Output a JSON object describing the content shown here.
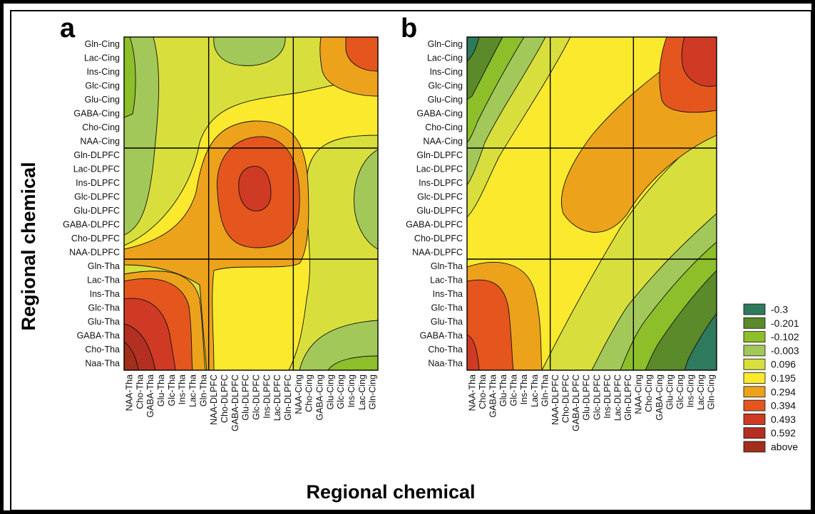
{
  "chart_data": [
    {
      "panel": "a",
      "type": "heatmap",
      "xlabel": "Regional chemical",
      "ylabel": "Regional chemical",
      "x_categories": [
        "NAA-Tha",
        "Cho-Tha",
        "GABA-Tha",
        "Glu-Tha",
        "Glc-Tha",
        "Ins-Tha",
        "Lac-Tha",
        "Gln-Tha",
        "NAA-DLPFC",
        "Cho-DLPFC",
        "GABA-DLPFC",
        "Glu-DLPFC",
        "Glc-DLPFC",
        "Ins-DLPFC",
        "Lac-DLPFC",
        "Gln-DLPFC",
        "NAA-Cing",
        "Cho-Cing",
        "GABA-Cing",
        "Glu-Cing",
        "Glc-Cing",
        "Ins-Cing",
        "Lac-Cing",
        "Gln-Cing"
      ],
      "y_categories": [
        "Gln-Cing",
        "Lac-Cing",
        "Ins-Cing",
        "Glc-Cing",
        "Glu-Cing",
        "GABA-Cing",
        "Cho-Cing",
        "NAA-Cing",
        "Gln-DLPFC",
        "Lac-DLPFC",
        "Ins-DLPFC",
        "Glc-DLPFC",
        "Glu-DLPFC",
        "GABA-DLPFC",
        "Cho-DLPFC",
        "NAA-DLPFC",
        "Gln-Tha",
        "Lac-Tha",
        "Ins-Tha",
        "Glc-Tha",
        "Glu-Tha",
        "GABA-Tha",
        "Cho-Tha",
        "Naa-Tha"
      ]
    },
    {
      "panel": "b",
      "type": "heatmap",
      "xlabel": "Regional chemical",
      "ylabel": "Regional chemical",
      "x_categories": [
        "NAA-Tha",
        "Cho-Tha",
        "GABA-Tha",
        "Glu-Tha",
        "Glc-Tha",
        "Ins-Tha",
        "Lac-Tha",
        "Gln-Tha",
        "NAA-DLPFC",
        "Cho-DLPFC",
        "GABA-DLPFC",
        "Glu-DLPFC",
        "Glc-DLPFC",
        "Ins-DLPFC",
        "Lac-DLPFC",
        "Gln-DLPFC",
        "NAA-Cing",
        "Cho-Cing",
        "GABA-Cing",
        "Glu-Cing",
        "Glc-Cing",
        "Ins-Cing",
        "Lac-Cing",
        "Gln-Cing"
      ],
      "y_categories": [
        "Gln-Cing",
        "Lac-Cing",
        "Ins-Cing",
        "Glc-Cing",
        "Glu-Cing",
        "GABA-Cing",
        "Cho-Cing",
        "NAA-Cing",
        "Gln-DLPFC",
        "Lac-DLPFC",
        "Ins-DLPFC",
        "Glc-DLPFC",
        "Glu-DLPFC",
        "GABA-DLPFC",
        "Cho-DLPFC",
        "NAA-DLPFC",
        "Gln-Tha",
        "Lac-Tha",
        "Ins-Tha",
        "Glc-Tha",
        "Glu-Tha",
        "GABA-Tha",
        "Cho-Tha",
        "Naa-Tha"
      ]
    }
  ],
  "legend": {
    "levels": [
      {
        "label": "-0.3",
        "color": "#2e7a5c"
      },
      {
        "label": "-0.201",
        "color": "#5a8a2a"
      },
      {
        "label": "-0.102",
        "color": "#8cbf2a"
      },
      {
        "label": "-0.003",
        "color": "#a3c85a"
      },
      {
        "label": "0.096",
        "color": "#d8df3c"
      },
      {
        "label": "0.195",
        "color": "#fbe92e"
      },
      {
        "label": "0.294",
        "color": "#eda21c"
      },
      {
        "label": "0.394",
        "color": "#e4561e"
      },
      {
        "label": "0.493",
        "color": "#cf3a24"
      },
      {
        "label": "0.592",
        "color": "#b32f22"
      },
      {
        "label": "above",
        "color": "#a12f1c"
      }
    ]
  },
  "panel_labels": {
    "a": "a",
    "b": "b"
  },
  "axis_titles": {
    "x": "Regional chemical",
    "y": "Regional chemical"
  }
}
